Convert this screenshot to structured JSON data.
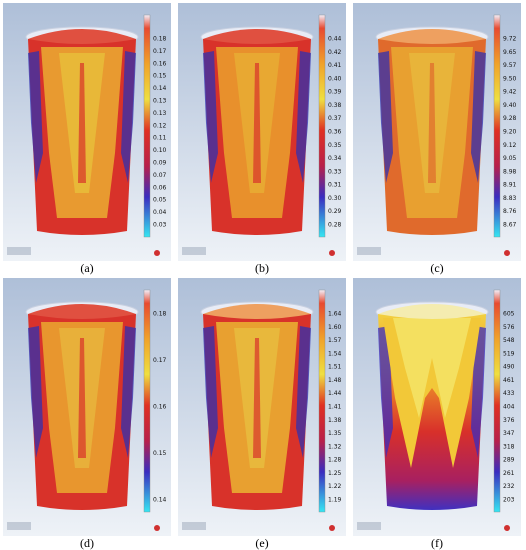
{
  "panels": [
    {
      "caption": "(a)",
      "scale": [
        "0.18",
        "0.17",
        "0.16",
        "0.15",
        "0.14",
        "0.13",
        "0.13",
        "0.12",
        "0.11",
        "0.10",
        "0.09",
        "0.07",
        "0.06",
        "0.05",
        "0.04",
        "0.03"
      ]
    },
    {
      "caption": "(b)",
      "scale": [
        "0.44",
        "0.42",
        "0.41",
        "0.40",
        "0.39",
        "0.38",
        "0.37",
        "0.36",
        "0.35",
        "0.34",
        "0.33",
        "0.31",
        "0.30",
        "0.29",
        "0.28"
      ]
    },
    {
      "caption": "(c)",
      "scale": [
        "9.72",
        "9.65",
        "9.57",
        "9.50",
        "9.42",
        "9.40",
        "9.28",
        "9.20",
        "9.12",
        "9.05",
        "8.98",
        "8.91",
        "8.83",
        "8.76",
        "8.67"
      ]
    },
    {
      "caption": "(d)",
      "scale": [
        "0.18",
        "0.17",
        "0.16",
        "0.15",
        "0.14"
      ]
    },
    {
      "caption": "(e)",
      "scale": [
        "1.64",
        "1.60",
        "1.57",
        "1.54",
        "1.51",
        "1.48",
        "1.44",
        "1.41",
        "1.38",
        "1.35",
        "1.32",
        "1.28",
        "1.25",
        "1.22",
        "1.19"
      ]
    },
    {
      "caption": "(f)",
      "scale": [
        "605",
        "576",
        "548",
        "519",
        "490",
        "461",
        "433",
        "404",
        "376",
        "347",
        "318",
        "289",
        "261",
        "232",
        "203"
      ]
    }
  ]
}
